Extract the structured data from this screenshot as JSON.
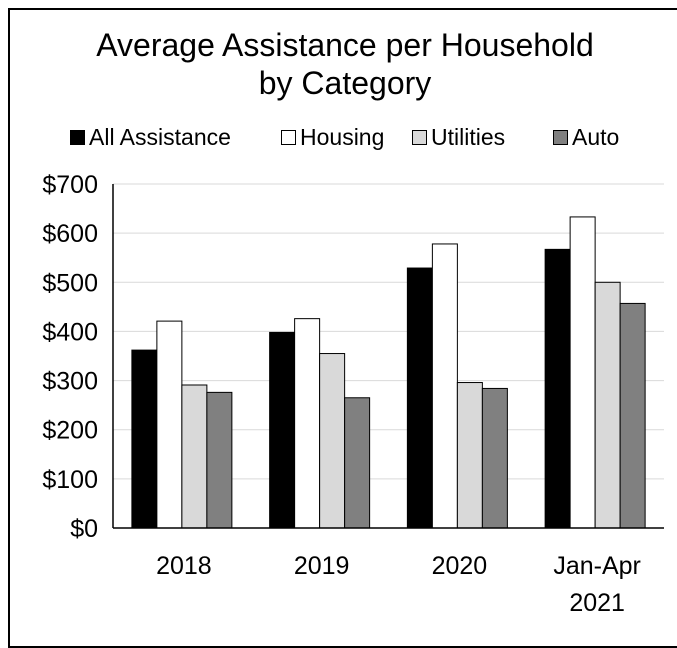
{
  "chart_data": {
    "type": "bar",
    "title": [
      "Average Assistance per Household",
      "by Category"
    ],
    "categories": [
      [
        "2018"
      ],
      [
        "2019"
      ],
      [
        "2020"
      ],
      [
        "Jan-Apr",
        "2021"
      ]
    ],
    "series": [
      {
        "name": "All Assistance",
        "color": "#000000",
        "values": [
          362,
          398,
          529,
          567
        ]
      },
      {
        "name": "Housing",
        "color": "#ffffff",
        "values": [
          421,
          426,
          578,
          633
        ]
      },
      {
        "name": "Utilities",
        "color": "#d9d9d9",
        "values": [
          291,
          355,
          296,
          500
        ]
      },
      {
        "name": "Auto",
        "color": "#808080",
        "values": [
          276,
          265,
          284,
          457
        ]
      }
    ],
    "y_ticks": [
      "$0",
      "$100",
      "$200",
      "$300",
      "$400",
      "$500",
      "$600",
      "$700"
    ],
    "ylim": [
      0,
      700
    ],
    "grid": true,
    "legend_position": "top"
  }
}
